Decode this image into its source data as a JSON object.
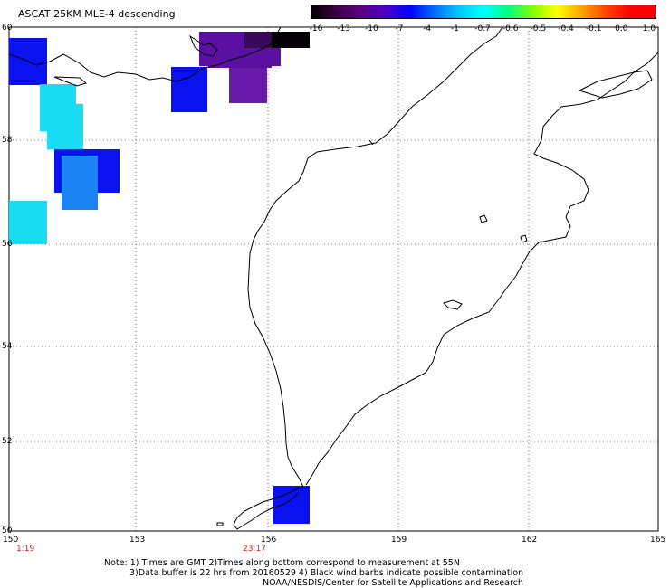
{
  "title": "ASCAT 25KM MLE-4 descending",
  "colorbar": {
    "labels": [
      "-16",
      "-13",
      "-10",
      "-7",
      "-4",
      "-1",
      "-0.7",
      "-0.6",
      "-0.5",
      "-0.4",
      "-0.1",
      "0.0",
      "1.0"
    ],
    "colors": [
      "#000000",
      "#3a0040",
      "#5a0080",
      "#4b00c8",
      "#0000ff",
      "#0070ff",
      "#00c8ff",
      "#00ffff",
      "#00ff80",
      "#80ff00",
      "#ffff00",
      "#ffa000",
      "#ff4000",
      "#ff0000"
    ]
  },
  "map": {
    "lon_ticks": [
      "150",
      "153",
      "156",
      "159",
      "162",
      "165"
    ],
    "lat_ticks": [
      "60",
      "58",
      "56",
      "54",
      "52",
      "50"
    ],
    "times": {
      "left": "1:19",
      "middle": "23:17"
    },
    "cell_colors": {
      "blue": "#0a12f0",
      "cyan": "#18dcf2",
      "midblue": "#1a84f5",
      "purple": "#5a10a0",
      "darkpurple": "#3a0a5a",
      "black": "#050005",
      "violet": "#6a1aa8"
    }
  },
  "notes": {
    "line1": "Note: 1) Times are GMT 2)Times along bottom correspond to measurement at 55N",
    "line2": "3)Data buffer is 22 hrs from 20160529 4) Black wind barbs indicate possible contamination",
    "line3": "NOAA/NESDIS/Center for Satellite Applications and Research"
  }
}
